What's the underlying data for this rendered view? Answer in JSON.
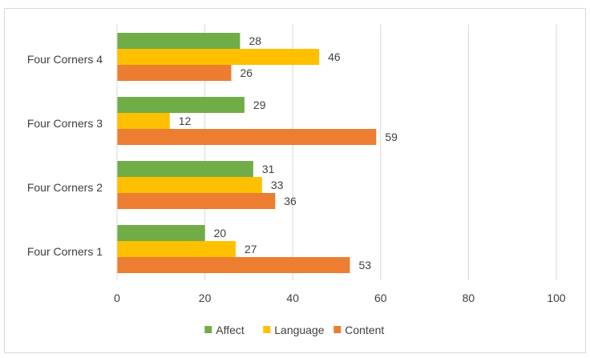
{
  "chart_data": {
    "type": "bar",
    "orientation": "horizontal",
    "categories": [
      "Four Corners 1",
      "Four Corners 2",
      "Four Corners 3",
      "Four Corners 4"
    ],
    "series": [
      {
        "name": "Affect",
        "color": "#70ad47",
        "values": [
          20,
          31,
          29,
          28
        ]
      },
      {
        "name": "Language",
        "color": "#ffc000",
        "values": [
          27,
          33,
          12,
          46
        ]
      },
      {
        "name": "Content",
        "color": "#ed7d31",
        "values": [
          53,
          36,
          59,
          26
        ]
      }
    ],
    "xlim": [
      0,
      100
    ],
    "xticks": [
      0,
      20,
      40,
      60,
      80,
      100
    ],
    "grid": true,
    "legend_position": "bottom",
    "data_labels": true,
    "title": "",
    "xlabel": "",
    "ylabel": ""
  }
}
